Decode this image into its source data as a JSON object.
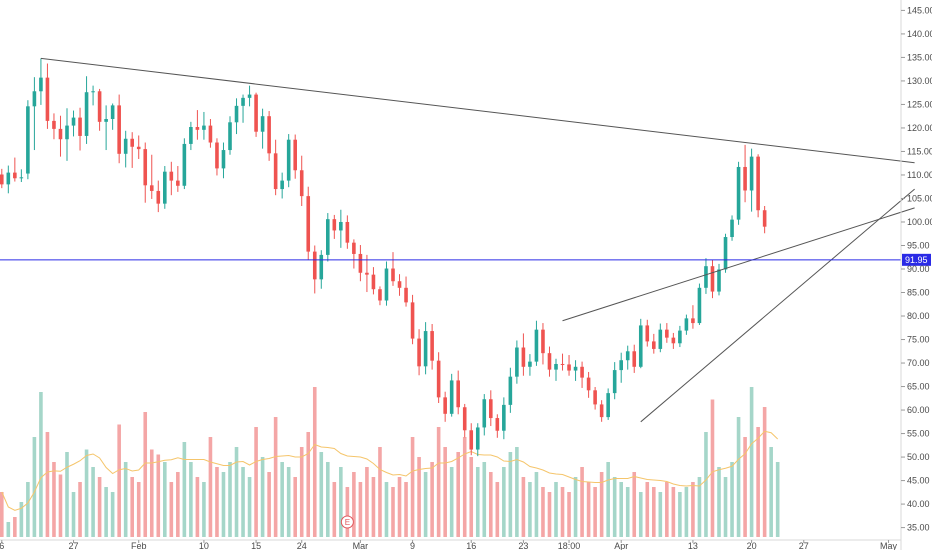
{
  "chart_data": {
    "type": "candlestick",
    "title": "",
    "xlabel": "",
    "ylabel": "",
    "ylim": [
      33,
      147
    ],
    "y_ticks": [
      "35.00",
      "40.00",
      "45.00",
      "50.00",
      "55.00",
      "60.00",
      "65.00",
      "70.00",
      "75.00",
      "80.00",
      "85.00",
      "90.00",
      "95.00",
      "100.00",
      "105.00",
      "110.00",
      "115.00",
      "120.00",
      "125.00",
      "130.00",
      "135.00",
      "140.00",
      "145.00"
    ],
    "x_ticks": [
      {
        "label": "6",
        "bar": 0
      },
      {
        "label": "27",
        "bar": 11
      },
      {
        "label": "Feb",
        "bar": 21
      },
      {
        "label": "10",
        "bar": 31
      },
      {
        "label": "15",
        "bar": 39
      },
      {
        "label": "24",
        "bar": 46
      },
      {
        "label": "Mar",
        "bar": 55
      },
      {
        "label": "9",
        "bar": 63
      },
      {
        "label": "16",
        "bar": 72
      },
      {
        "label": "23",
        "bar": 80
      },
      {
        "label": "18:00",
        "bar": 87
      },
      {
        "label": "Apr",
        "bar": 95
      },
      {
        "label": "13",
        "bar": 106
      },
      {
        "label": "20",
        "bar": 115
      },
      {
        "label": "27",
        "bar": 123
      },
      {
        "label": "May",
        "bar": 136
      }
    ],
    "price_line": {
      "value": 91.95,
      "label": "91.95",
      "color": "#2a2ae6"
    },
    "earnings_marker": {
      "label": "E",
      "bar": 53
    },
    "trendlines": [
      {
        "x1": 6,
        "y1": 134.8,
        "x2": 140,
        "y2": 112.6
      },
      {
        "x1": 86,
        "y1": 79.0,
        "x2": 140,
        "y2": 103.0
      },
      {
        "x1": 98,
        "y1": 57.5,
        "x2": 140,
        "y2": 107.0
      }
    ],
    "colors": {
      "up": "#26a69a",
      "down": "#ef5350",
      "vol_up": "#a5d6c9",
      "vol_down": "#f4a6a6",
      "ma": "#f5c56b",
      "trend": "#555555"
    },
    "ohlc": [
      [
        110.1,
        111.3,
        107.2,
        108.0
      ],
      [
        108.0,
        112.0,
        106.1,
        110.5
      ],
      [
        110.5,
        113.7,
        108.6,
        109.3
      ],
      [
        109.3,
        111.2,
        108.5,
        109.5
      ],
      [
        110.3,
        125.9,
        109.1,
        124.6
      ],
      [
        124.6,
        130.8,
        115.3,
        127.8
      ],
      [
        127.8,
        134.8,
        124.9,
        130.7
      ],
      [
        130.7,
        133.7,
        119.8,
        121.5
      ],
      [
        121.5,
        123.1,
        117.6,
        119.8
      ],
      [
        119.8,
        122.6,
        113.9,
        117.6
      ],
      [
        117.6,
        124.2,
        113.0,
        120.5
      ],
      [
        120.5,
        123.7,
        118.2,
        122.2
      ],
      [
        122.2,
        124.3,
        115.2,
        118.3
      ],
      [
        118.3,
        131.0,
        116.6,
        127.6
      ],
      [
        127.6,
        129.0,
        124.8,
        127.8
      ],
      [
        127.8,
        128.3,
        119.4,
        121.3
      ],
      [
        121.3,
        124.8,
        115.3,
        121.9
      ],
      [
        121.9,
        125.2,
        119.6,
        124.8
      ],
      [
        124.8,
        127.1,
        112.5,
        114.5
      ],
      [
        114.5,
        119.4,
        111.6,
        117.7
      ],
      [
        117.7,
        119.1,
        111.5,
        116.0
      ],
      [
        116.0,
        118.4,
        113.4,
        115.5
      ],
      [
        115.5,
        116.9,
        104.1,
        107.8
      ],
      [
        107.8,
        114.3,
        104.9,
        106.6
      ],
      [
        106.6,
        108.8,
        102.1,
        103.9
      ],
      [
        103.9,
        111.9,
        102.8,
        110.7
      ],
      [
        110.7,
        112.8,
        105.7,
        108.8
      ],
      [
        108.8,
        111.9,
        106.4,
        107.7
      ],
      [
        107.7,
        117.8,
        107.0,
        116.6
      ],
      [
        116.6,
        121.3,
        115.3,
        120.2
      ],
      [
        120.2,
        123.8,
        117.5,
        119.6
      ],
      [
        119.6,
        123.4,
        117.5,
        120.5
      ],
      [
        120.5,
        121.9,
        115.8,
        116.9
      ],
      [
        116.9,
        117.8,
        109.9,
        111.4
      ],
      [
        111.4,
        116.9,
        109.3,
        115.3
      ],
      [
        115.3,
        122.5,
        114.3,
        121.2
      ],
      [
        121.2,
        126.3,
        118.7,
        124.7
      ],
      [
        124.7,
        127.1,
        121.1,
        126.4
      ],
      [
        126.4,
        129.0,
        124.6,
        127.1
      ],
      [
        127.1,
        127.5,
        118.1,
        119.2
      ],
      [
        119.2,
        124.1,
        115.6,
        122.5
      ],
      [
        122.5,
        123.6,
        113.0,
        114.6
      ],
      [
        114.6,
        117.5,
        105.7,
        107.0
      ],
      [
        107.0,
        110.5,
        105.0,
        108.8
      ],
      [
        108.8,
        118.7,
        107.4,
        117.5
      ],
      [
        117.5,
        118.6,
        109.2,
        111.0
      ],
      [
        111.0,
        114.1,
        103.4,
        105.5
      ],
      [
        105.5,
        107.5,
        92.0,
        93.7
      ],
      [
        93.7,
        95.0,
        84.8,
        87.8
      ],
      [
        87.8,
        94.0,
        85.8,
        93.0
      ],
      [
        93.0,
        101.9,
        91.6,
        100.6
      ],
      [
        100.6,
        101.5,
        96.4,
        98.2
      ],
      [
        98.2,
        102.6,
        94.5,
        100.0
      ],
      [
        100.0,
        101.4,
        94.3,
        95.6
      ],
      [
        95.6,
        96.3,
        90.1,
        93.2
      ],
      [
        93.2,
        95.1,
        87.4,
        89.2
      ],
      [
        89.2,
        93.0,
        85.1,
        88.8
      ],
      [
        88.8,
        90.4,
        84.6,
        85.7
      ],
      [
        85.7,
        86.3,
        82.3,
        83.3
      ],
      [
        83.3,
        91.6,
        82.2,
        90.1
      ],
      [
        90.1,
        93.6,
        86.4,
        87.4
      ],
      [
        87.4,
        88.9,
        84.3,
        86.0
      ],
      [
        86.0,
        88.4,
        82.0,
        82.9
      ],
      [
        82.9,
        84.5,
        74.0,
        75.2
      ],
      [
        75.2,
        77.2,
        67.4,
        69.3
      ],
      [
        69.3,
        78.7,
        67.6,
        76.8
      ],
      [
        76.8,
        78.3,
        68.6,
        70.5
      ],
      [
        70.5,
        72.3,
        61.5,
        62.7
      ],
      [
        62.7,
        63.9,
        57.5,
        59.2
      ],
      [
        59.2,
        67.7,
        58.6,
        66.3
      ],
      [
        66.3,
        68.4,
        59.1,
        60.6
      ],
      [
        60.6,
        61.3,
        54.2,
        55.7
      ],
      [
        55.7,
        57.2,
        50.4,
        51.6
      ],
      [
        51.6,
        57.2,
        50.2,
        56.3
      ],
      [
        56.3,
        63.4,
        54.6,
        62.3
      ],
      [
        62.3,
        64.2,
        56.6,
        58.3
      ],
      [
        58.3,
        59.1,
        54.1,
        55.6
      ],
      [
        55.6,
        62.7,
        53.8,
        61.1
      ],
      [
        61.1,
        69.0,
        59.4,
        67.1
      ],
      [
        67.1,
        74.8,
        65.6,
        73.3
      ],
      [
        73.3,
        76.3,
        67.3,
        69.2
      ],
      [
        69.2,
        71.9,
        67.3,
        70.3
      ],
      [
        70.3,
        79.0,
        69.4,
        77.1
      ],
      [
        77.1,
        78.5,
        69.7,
        72.1
      ],
      [
        72.1,
        73.5,
        67.1,
        68.6
      ],
      [
        68.6,
        70.9,
        66.2,
        69.8
      ],
      [
        69.8,
        72.0,
        68.4,
        69.7
      ],
      [
        69.7,
        71.7,
        67.3,
        68.4
      ],
      [
        68.4,
        70.6,
        66.2,
        69.2
      ],
      [
        69.2,
        70.3,
        64.7,
        66.9
      ],
      [
        66.9,
        68.1,
        62.6,
        64.2
      ],
      [
        64.2,
        64.9,
        60.1,
        61.2
      ],
      [
        61.2,
        62.1,
        57.5,
        58.5
      ],
      [
        58.5,
        64.6,
        57.9,
        63.6
      ],
      [
        63.6,
        70.2,
        62.3,
        68.5
      ],
      [
        68.5,
        72.2,
        65.8,
        70.6
      ],
      [
        70.6,
        73.7,
        68.6,
        72.5
      ],
      [
        72.5,
        73.9,
        67.9,
        69.2
      ],
      [
        69.2,
        79.4,
        68.9,
        78.0
      ],
      [
        78.0,
        79.2,
        73.5,
        74.6
      ],
      [
        74.6,
        76.2,
        72.0,
        73.0
      ],
      [
        73.0,
        78.4,
        72.3,
        77.1
      ],
      [
        77.1,
        78.5,
        74.3,
        75.4
      ],
      [
        75.4,
        76.4,
        73.0,
        74.2
      ],
      [
        74.2,
        77.9,
        73.4,
        76.9
      ],
      [
        76.9,
        80.3,
        76.0,
        79.5
      ],
      [
        79.5,
        82.3,
        77.3,
        78.5
      ],
      [
        78.5,
        86.9,
        78.1,
        86.0
      ],
      [
        86.0,
        92.3,
        84.7,
        90.6
      ],
      [
        90.6,
        92.0,
        83.8,
        85.2
      ],
      [
        85.2,
        91.1,
        84.4,
        89.9
      ],
      [
        89.9,
        97.5,
        89.2,
        96.8
      ],
      [
        96.8,
        101.4,
        96.0,
        100.5
      ],
      [
        100.5,
        112.8,
        99.4,
        111.7
      ],
      [
        111.7,
        116.4,
        104.2,
        106.7
      ],
      [
        106.7,
        115.6,
        102.2,
        113.9
      ],
      [
        113.9,
        114.4,
        101.0,
        102.5
      ],
      [
        102.5,
        103.4,
        97.6,
        99.0
      ]
    ],
    "volume": [
      18,
      6,
      8,
      14,
      22,
      40,
      58,
      42,
      30,
      25,
      34,
      18,
      22,
      35,
      28,
      24,
      20,
      18,
      45,
      30,
      24,
      22,
      50,
      35,
      33,
      30,
      22,
      26,
      38,
      30,
      24,
      22,
      40,
      28,
      26,
      30,
      36,
      28,
      24,
      44,
      32,
      26,
      48,
      30,
      28,
      24,
      36,
      42,
      60,
      34,
      30,
      22,
      28,
      20,
      26,
      22,
      28,
      24,
      36,
      22,
      20,
      24,
      22,
      40,
      32,
      26,
      30,
      44,
      36,
      28,
      34,
      40,
      32,
      28,
      30,
      26,
      22,
      28,
      34,
      36,
      24,
      22,
      26,
      20,
      18,
      22,
      20,
      18,
      24,
      28,
      22,
      20,
      26,
      30,
      24,
      22,
      20,
      26,
      18,
      22,
      20,
      18,
      22,
      20,
      18,
      20,
      22,
      24,
      42,
      55,
      28,
      24,
      30,
      48,
      40,
      60,
      44,
      52,
      36,
      30
    ]
  }
}
